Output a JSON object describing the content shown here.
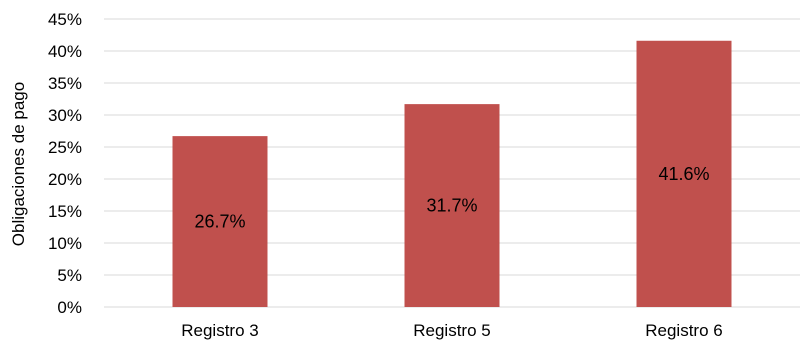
{
  "chart_data": {
    "type": "bar",
    "categories": [
      "Registro 3",
      "Registro 5",
      "Registro 6"
    ],
    "values": [
      26.7,
      31.7,
      41.6
    ],
    "data_labels": [
      "26.7%",
      "31.7%",
      "41.6%"
    ],
    "title": "",
    "xlabel": "",
    "ylabel": "Obligaciones de pago",
    "ylim": [
      0,
      45
    ],
    "yticks": [
      0,
      5,
      10,
      15,
      20,
      25,
      30,
      35,
      40,
      45
    ],
    "ytick_labels": [
      "0%",
      "5%",
      "10%",
      "15%",
      "20%",
      "25%",
      "30%",
      "35%",
      "40%",
      "45%"
    ],
    "grid": true,
    "legend": "none",
    "bar_color": "#C0504D",
    "grid_color": "#D9D9D9"
  }
}
